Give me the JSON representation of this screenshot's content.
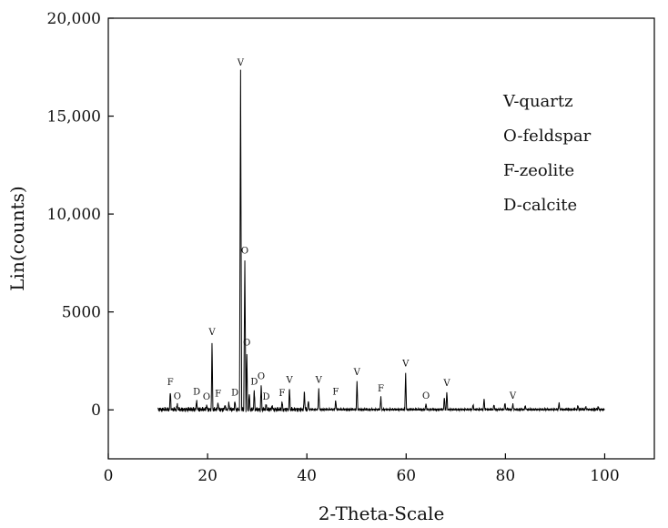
{
  "chart_data": {
    "type": "line",
    "title": "",
    "xlabel": "2-Theta-Scale",
    "ylabel": "Lin(counts)",
    "xlim": [
      0,
      110
    ],
    "ylim": [
      -2500,
      20000
    ],
    "x_ticks": [
      0,
      20,
      40,
      60,
      80,
      100
    ],
    "x_tick_labels": [
      "0",
      "20",
      "40",
      "60",
      "80",
      "100"
    ],
    "y_ticks": [
      0,
      5000,
      10000,
      15000,
      20000
    ],
    "y_tick_labels": [
      "0",
      "5000",
      "10,000",
      "15,000",
      "20,000"
    ],
    "grid": false,
    "legend_position": "top-right",
    "legend": [
      "V-quartz",
      "O-feldspar",
      "F-zeolite",
      "D-calcite"
    ],
    "color": "#000000",
    "baseline": 20,
    "x_range": [
      10,
      100
    ],
    "peaks": [
      {
        "x": 12.5,
        "y": 980,
        "label": "F"
      },
      {
        "x": 13.9,
        "y": 260,
        "label": "O"
      },
      {
        "x": 17.8,
        "y": 500,
        "label": "D"
      },
      {
        "x": 19.8,
        "y": 250,
        "label": "O"
      },
      {
        "x": 20.9,
        "y": 3550,
        "label": "V"
      },
      {
        "x": 22.1,
        "y": 400,
        "label": "F"
      },
      {
        "x": 23.5,
        "y": 250,
        "label": ""
      },
      {
        "x": 24.3,
        "y": 350,
        "label": ""
      },
      {
        "x": 25.5,
        "y": 450,
        "label": "D"
      },
      {
        "x": 26.65,
        "y": 17300,
        "label": "V"
      },
      {
        "x": 27.5,
        "y": 7700,
        "label": "O"
      },
      {
        "x": 27.9,
        "y": 3000,
        "label": "O"
      },
      {
        "x": 28.4,
        "y": 850,
        "label": ""
      },
      {
        "x": 29.4,
        "y": 1000,
        "label": "D"
      },
      {
        "x": 30.8,
        "y": 1300,
        "label": "O"
      },
      {
        "x": 31.8,
        "y": 250,
        "label": "D"
      },
      {
        "x": 33.0,
        "y": 200,
        "label": ""
      },
      {
        "x": 35.0,
        "y": 420,
        "label": "F"
      },
      {
        "x": 36.5,
        "y": 1100,
        "label": "V"
      },
      {
        "x": 39.5,
        "y": 1000,
        "label": ""
      },
      {
        "x": 40.3,
        "y": 450,
        "label": ""
      },
      {
        "x": 42.4,
        "y": 1100,
        "label": "V"
      },
      {
        "x": 45.8,
        "y": 500,
        "label": "F"
      },
      {
        "x": 50.1,
        "y": 1500,
        "label": "V"
      },
      {
        "x": 54.9,
        "y": 650,
        "label": "F"
      },
      {
        "x": 59.9,
        "y": 1950,
        "label": "V"
      },
      {
        "x": 64.0,
        "y": 300,
        "label": "O"
      },
      {
        "x": 67.7,
        "y": 650,
        "label": ""
      },
      {
        "x": 68.2,
        "y": 950,
        "label": "V"
      },
      {
        "x": 73.5,
        "y": 250,
        "label": ""
      },
      {
        "x": 75.7,
        "y": 550,
        "label": ""
      },
      {
        "x": 77.7,
        "y": 250,
        "label": ""
      },
      {
        "x": 79.9,
        "y": 350,
        "label": ""
      },
      {
        "x": 81.5,
        "y": 300,
        "label": "V"
      },
      {
        "x": 84.0,
        "y": 200,
        "label": ""
      },
      {
        "x": 90.8,
        "y": 350,
        "label": ""
      },
      {
        "x": 94.6,
        "y": 200,
        "label": ""
      },
      {
        "x": 96.2,
        "y": 150,
        "label": ""
      },
      {
        "x": 98.7,
        "y": 150,
        "label": ""
      }
    ]
  }
}
